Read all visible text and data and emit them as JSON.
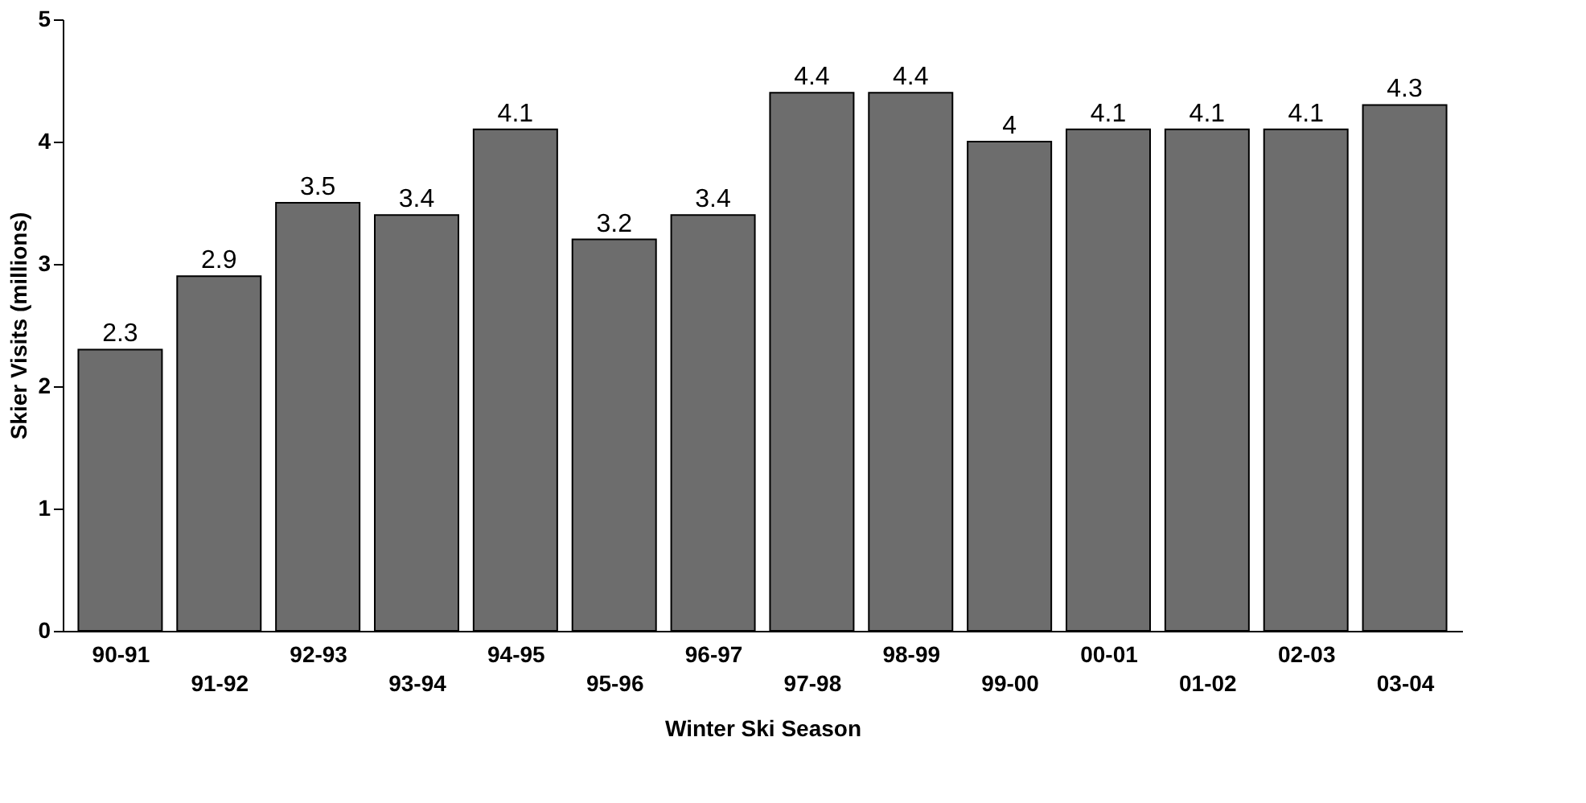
{
  "chart_data": {
    "type": "bar",
    "xlabel": "Winter Ski Season",
    "ylabel": "Skier Visits (millions)",
    "categories": [
      "90-91",
      "91-92",
      "92-93",
      "93-94",
      "94-95",
      "95-96",
      "96-97",
      "97-98",
      "98-99",
      "99-00",
      "00-01",
      "01-02",
      "02-03",
      "03-04"
    ],
    "values": [
      2.3,
      2.9,
      3.5,
      3.4,
      4.1,
      3.2,
      3.4,
      4.4,
      4.4,
      4,
      4.1,
      4.1,
      4.1,
      4.3
    ],
    "color": "#6d6d6d",
    "ylim": [
      0,
      5
    ],
    "yticks": [
      0,
      1,
      2,
      3,
      4,
      5
    ],
    "grid": false,
    "data_labels": true
  }
}
